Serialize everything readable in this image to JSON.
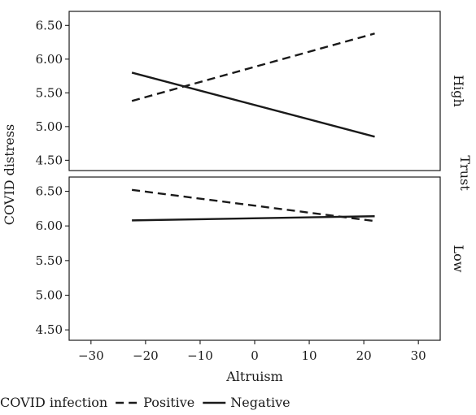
{
  "chart_data": {
    "type": "line",
    "xlabel": "Altruism",
    "ylabel": "COVID distress",
    "facet_label": "Trust",
    "xlim": [
      -34,
      34
    ],
    "ylim": [
      4.42,
      6.6
    ],
    "xticks": [
      -30,
      -20,
      -10,
      0,
      10,
      20,
      30
    ],
    "xtick_labels": [
      "−30",
      "−20",
      "−10",
      "0",
      "10",
      "20",
      "30"
    ],
    "yticks": [
      4.5,
      5.0,
      5.5,
      6.0,
      6.5
    ],
    "ytick_labels": [
      "4.50",
      "5.00",
      "5.50",
      "6.00",
      "6.50"
    ],
    "legend": {
      "title": "COVID infection",
      "placement": "bottom",
      "entries": [
        {
          "label": "Positive",
          "style": "dashed"
        },
        {
          "label": "Negative",
          "style": "solid"
        }
      ]
    },
    "panels": [
      {
        "label": "High",
        "series": [
          {
            "name": "Positive",
            "x": [
              -22.5,
              22
            ],
            "y": [
              5.38,
              6.38
            ]
          },
          {
            "name": "Negative",
            "x": [
              -22.5,
              22
            ],
            "y": [
              5.8,
              4.85
            ]
          }
        ]
      },
      {
        "label": "Low",
        "series": [
          {
            "name": "Positive",
            "x": [
              -22.5,
              22
            ],
            "y": [
              6.52,
              6.07
            ]
          },
          {
            "name": "Negative",
            "x": [
              -22.5,
              22
            ],
            "y": [
              6.08,
              6.14
            ]
          }
        ]
      }
    ],
    "grid": false,
    "line_color": "#1a1a1a"
  }
}
